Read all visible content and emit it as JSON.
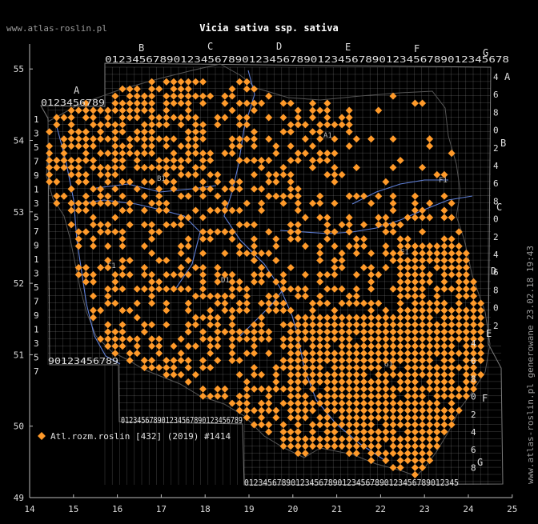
{
  "header": {
    "site": "www.atlas-roslin.pl",
    "title": "Vicia sativa ssp. sativa"
  },
  "footer_note": "www.atlas-roslin.pl generowane 23.02.18 19:43",
  "legend": {
    "label": "Atl.rozm.roslin [432] (2019) #1414",
    "color": "#ff9a2a"
  },
  "axes": {
    "lon_ticks": [
      "14",
      "15",
      "16",
      "17",
      "18",
      "19",
      "20",
      "21",
      "22",
      "23",
      "24",
      "25"
    ],
    "lat_ticks": [
      "55",
      "54",
      "53",
      "52",
      "51",
      "50",
      "49"
    ]
  },
  "grid": {
    "column_letters": [
      "A",
      "B",
      "C",
      "D",
      "E",
      "F",
      "G"
    ],
    "row_letters": [
      "A",
      "B",
      "C",
      "D",
      "E",
      "F",
      "G"
    ],
    "top_digits": "01234567890123456789012345678901234567890123456789012345678",
    "bottom_digits": "0123456789012345678901234567890123456789012345",
    "bottom_left_digits": "012345678901234567890123456789",
    "left_top_digits": "0123456789",
    "left_bottom_digits": "90123456789",
    "left_side_digits": [
      "1",
      "3",
      "5",
      "7",
      "9",
      "1",
      "3",
      "5",
      "7",
      "9",
      "1",
      "3",
      "5",
      "7",
      "9",
      "1",
      "3",
      "5",
      "7"
    ],
    "right_side_digits": [
      "4",
      "6",
      "8",
      "0",
      "2",
      "4",
      "6",
      "8",
      "0",
      "2",
      "4",
      "6",
      "8",
      "0",
      "2",
      "4",
      "6",
      "8",
      "0",
      "2",
      "4",
      "6",
      "8"
    ],
    "region_labels": [
      "B1",
      "A1",
      "C1",
      "D1",
      "E1",
      "F1",
      "G1"
    ]
  },
  "colors": {
    "background": "#000000",
    "grid": "#8c8c8c",
    "text": "#cfcfcf",
    "rivers": "#5f7fd6",
    "dots": "#ff9a2a",
    "axis": "#bdbdbd"
  },
  "chart_data": {
    "type": "scatter",
    "xlabel": "",
    "ylabel": "",
    "xlim": [
      14,
      25
    ],
    "ylim": [
      49,
      55.5
    ],
    "dot_spacing_deg": [
      0.1667,
      0.1
    ],
    "records": "432"
  }
}
